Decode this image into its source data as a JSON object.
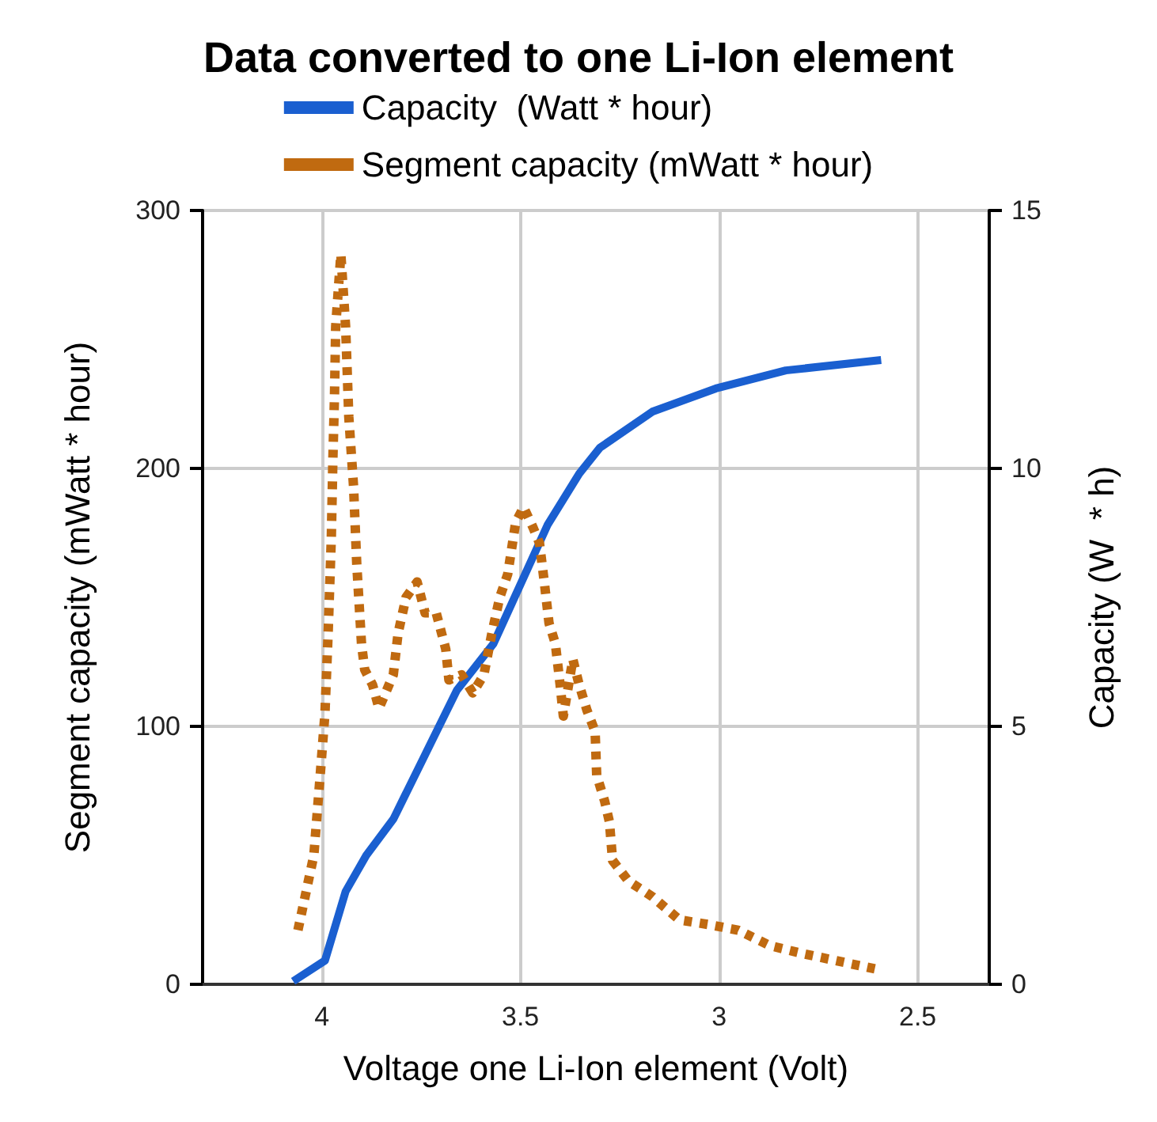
{
  "chart_data": {
    "type": "line",
    "title": "Data converted to one Li-Ion element",
    "xlabel": "Voltage one Li-Ion element (Volt)",
    "ylabel": "Segment capacity (mWatt * hour)",
    "y2label": "Capacity (W  * h)",
    "xlim": [
      4.3,
      2.32
    ],
    "xticks": [
      4,
      3.5,
      3,
      2.5
    ],
    "ylim": [
      0,
      300
    ],
    "yticks": [
      0,
      100,
      200,
      300
    ],
    "y2lim": [
      0,
      15
    ],
    "y2ticks": [
      0,
      5,
      10,
      15
    ],
    "grid": true,
    "legend": "top",
    "marker": "none",
    "series": [
      {
        "name": "Capacity  (Watt * hour)",
        "color": "#1a5fd0",
        "axis": "y2",
        "line_style": "solid",
        "x": [
          4.072,
          3.992,
          3.94,
          3.888,
          3.82,
          3.74,
          3.66,
          3.568,
          3.432,
          3.352,
          3.3,
          3.168,
          3.008,
          2.832,
          2.592
        ],
        "values": [
          0.06,
          0.46,
          1.8,
          2.5,
          3.2,
          4.45,
          5.7,
          6.6,
          8.9,
          9.9,
          10.4,
          11.1,
          11.55,
          11.9,
          12.1
        ]
      },
      {
        "name": "Segment capacity (mWatt * hour)",
        "color": "#c06a10",
        "line_style": "dotted",
        "x": [
          4.06,
          4.02,
          4.004,
          3.992,
          3.984,
          3.976,
          3.972,
          3.968,
          3.965,
          3.952,
          3.94,
          3.932,
          3.92,
          3.912,
          3.9,
          3.892,
          3.872,
          3.856,
          3.82,
          3.808,
          3.788,
          3.76,
          3.74,
          3.712,
          3.688,
          3.68,
          3.648,
          3.62,
          3.592,
          3.572,
          3.552,
          3.532,
          3.512,
          3.492,
          3.468,
          3.452,
          3.44,
          3.428,
          3.412,
          3.4,
          3.392,
          3.368,
          3.352,
          3.332,
          3.312,
          3.308,
          3.288,
          3.276,
          3.268,
          3.228,
          3.168,
          3.1,
          3.02,
          2.952,
          2.872,
          2.792,
          2.7,
          2.608
        ],
        "values": [
          21,
          50,
          81,
          105,
          136,
          173,
          204,
          228,
          255,
          283,
          255,
          220,
          193,
          163,
          132,
          122,
          116,
          107,
          120,
          136,
          150,
          156,
          144,
          144,
          130,
          118,
          120,
          113,
          120,
          136,
          150,
          159,
          179,
          185,
          177,
          171,
          156,
          140,
          132,
          116,
          104,
          126,
          116,
          106,
          98,
          81,
          71,
          63,
          48,
          40,
          34,
          25,
          23,
          21,
          15,
          12,
          9,
          6
        ]
      }
    ]
  }
}
